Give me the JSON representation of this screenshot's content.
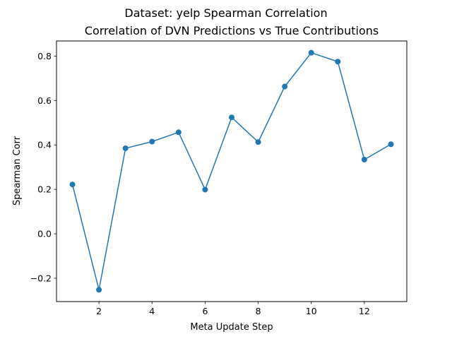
{
  "chart_data": {
    "type": "line",
    "suptitle": "Dataset: yelp Spearman Correlation",
    "title": "Correlation of DVN Predictions vs True Contributions",
    "xlabel": "Meta Update Step",
    "ylabel": "Spearman Corr",
    "x": [
      1,
      2,
      3,
      4,
      5,
      6,
      7,
      8,
      9,
      10,
      11,
      12,
      13
    ],
    "series": [
      {
        "values": [
          0.222,
          -0.252,
          0.385,
          0.415,
          0.457,
          0.199,
          0.524,
          0.413,
          0.663,
          0.815,
          0.775,
          0.334,
          0.403
        ],
        "color": "#1f77b4",
        "marker": "circle"
      }
    ],
    "xlim": [
      0.4,
      13.6
    ],
    "ylim": [
      -0.305,
      0.868
    ],
    "xticks": [
      2,
      4,
      6,
      8,
      10,
      12
    ],
    "xtick_labels": [
      "2",
      "4",
      "6",
      "8",
      "10",
      "12"
    ],
    "yticks": [
      -0.2,
      0.0,
      0.2,
      0.4,
      0.6,
      0.8
    ],
    "ytick_labels": [
      "−0.2",
      "0.0",
      "0.2",
      "0.4",
      "0.6",
      "0.8"
    ],
    "grid": false
  }
}
